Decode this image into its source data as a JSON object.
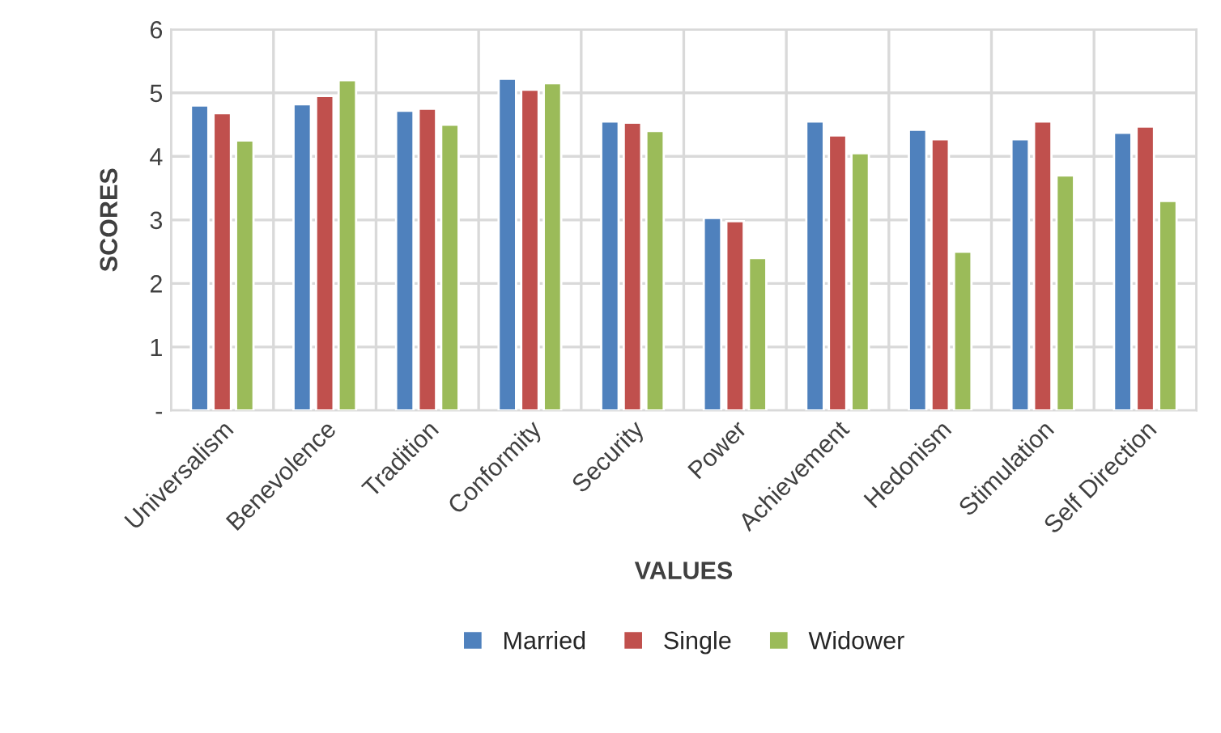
{
  "chart_data": {
    "type": "bar",
    "xlabel": "VALUES",
    "ylabel": "SCORES",
    "categories": [
      "Universalism",
      "Benevolence",
      "Tradition",
      "Conformity",
      "Security",
      "Power",
      "Achievement",
      "Hedonism",
      "Stimulation",
      "Self Direction"
    ],
    "series": [
      {
        "name": "Married",
        "color": "#4f81bd",
        "values": [
          4.8,
          4.82,
          4.72,
          5.22,
          4.55,
          3.03,
          4.55,
          4.42,
          4.27,
          4.37
        ]
      },
      {
        "name": "Single",
        "color": "#c0504d",
        "values": [
          4.68,
          4.95,
          4.75,
          5.05,
          4.53,
          2.98,
          4.33,
          4.27,
          4.55,
          4.47
        ]
      },
      {
        "name": "Widower",
        "color": "#9bbb59",
        "values": [
          4.25,
          5.2,
          4.5,
          5.15,
          4.4,
          2.4,
          4.05,
          2.5,
          3.7,
          3.3
        ]
      }
    ],
    "ylim": [
      0,
      6
    ],
    "yticks": [
      {
        "value": 0,
        "label": "-"
      },
      1,
      2,
      3,
      4,
      5,
      6
    ],
    "grid": true,
    "legend": "bottom"
  }
}
